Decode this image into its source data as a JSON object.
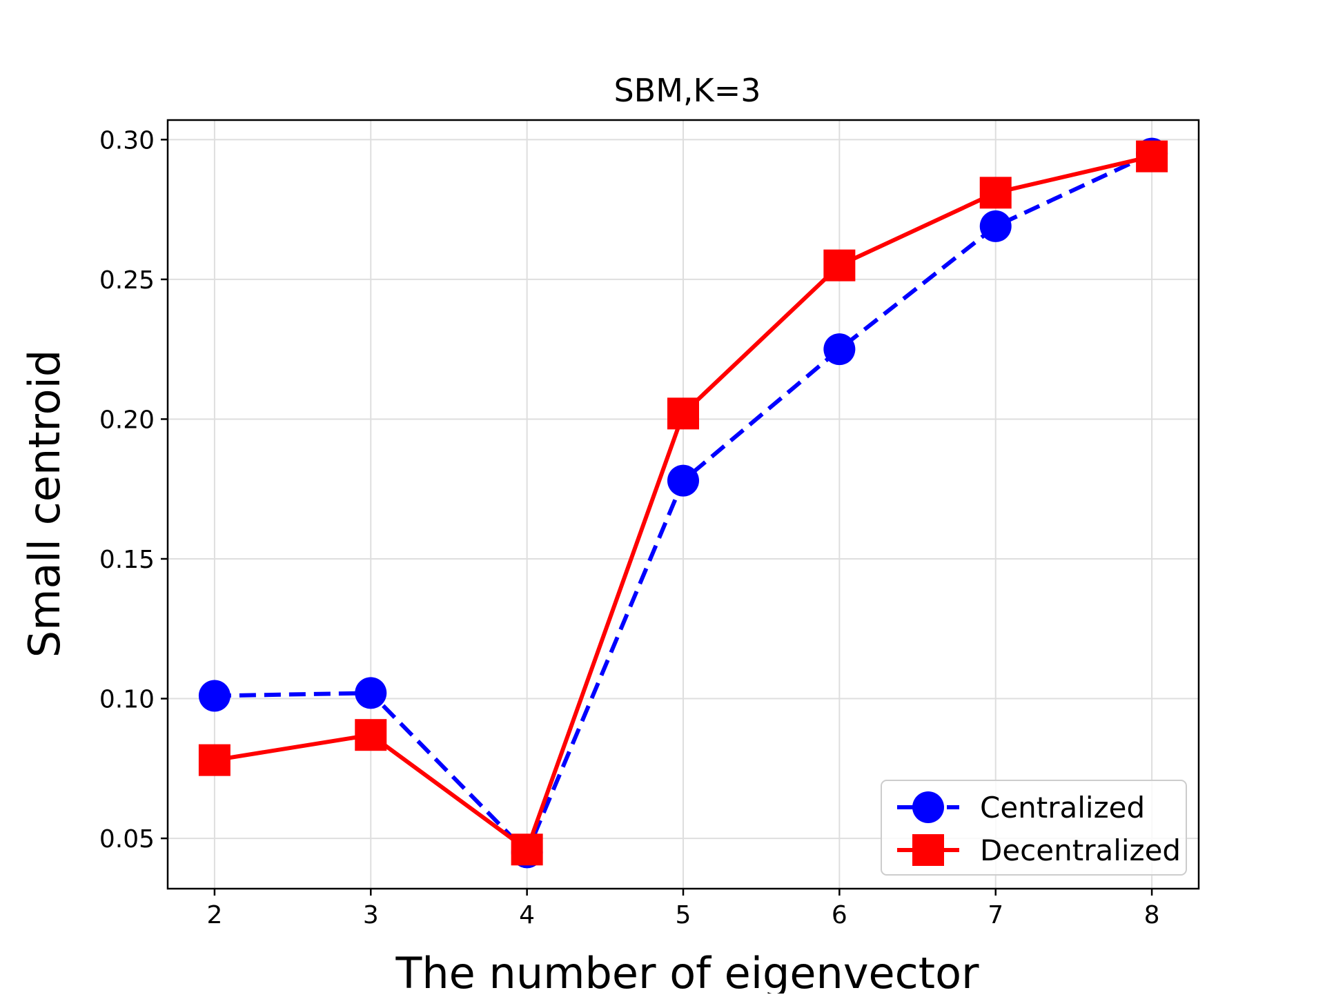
{
  "chart_data": {
    "type": "line",
    "title": "SBM,K=3",
    "xlabel": "The number of eigenvector",
    "ylabel": "Small centroid",
    "x": [
      2,
      3,
      4,
      5,
      6,
      7,
      8
    ],
    "xlim": [
      1.7,
      8.3
    ],
    "ylim": [
      0.032,
      0.307
    ],
    "xticks": [
      2,
      3,
      4,
      5,
      6,
      7,
      8
    ],
    "yticks": [
      0.05,
      0.1,
      0.15,
      0.2,
      0.25,
      0.3
    ],
    "xtick_labels": [
      "2",
      "3",
      "4",
      "5",
      "6",
      "7",
      "8"
    ],
    "ytick_labels": [
      "0.05",
      "0.10",
      "0.15",
      "0.20",
      "0.25",
      "0.30"
    ],
    "grid": true,
    "legend_position": "lower-right",
    "series": [
      {
        "name": "Centralized",
        "color": "#0000ff",
        "line_style": "dashed",
        "marker": "circle",
        "values": [
          0.101,
          0.102,
          0.045,
          0.178,
          0.225,
          0.269,
          0.295
        ]
      },
      {
        "name": "Decentralized",
        "color": "#ff0000",
        "line_style": "solid",
        "marker": "square",
        "values": [
          0.078,
          0.087,
          0.046,
          0.202,
          0.255,
          0.281,
          0.294
        ]
      }
    ]
  }
}
